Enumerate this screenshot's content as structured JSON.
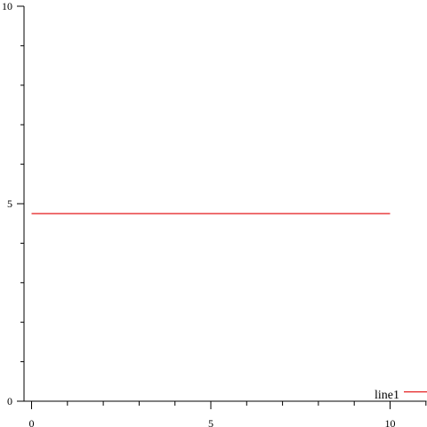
{
  "chart_data": {
    "type": "line",
    "title": "",
    "xlabel": "",
    "ylabel": "",
    "xlim": [
      0,
      11
    ],
    "ylim": [
      0,
      10
    ],
    "x_ticks_major": [
      0,
      5,
      10
    ],
    "x_ticks_minor": [
      1,
      2,
      3,
      4,
      6,
      7,
      8,
      9,
      11
    ],
    "y_ticks_major": [
      0,
      5,
      10
    ],
    "y_ticks_minor": [
      1,
      2,
      3,
      4,
      6,
      7,
      8,
      9
    ],
    "grid": false,
    "legend_position": "bottom-right",
    "series": [
      {
        "name": "line1",
        "color": "#e41a1c",
        "x": [
          0,
          10
        ],
        "y": [
          4.75,
          4.75
        ]
      }
    ]
  }
}
